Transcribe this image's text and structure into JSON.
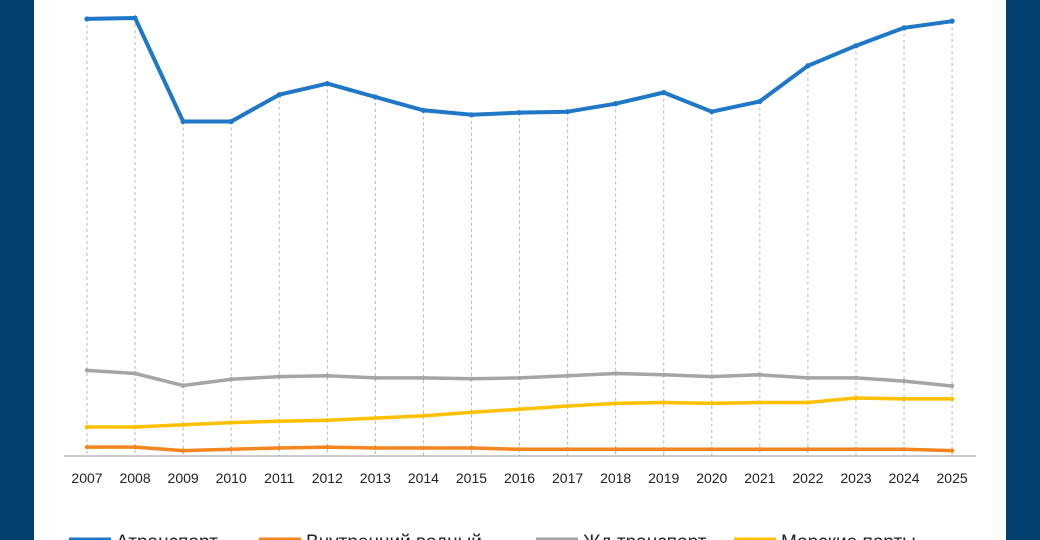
{
  "chart_data": {
    "type": "line",
    "title": "",
    "xlabel": "",
    "ylabel": "",
    "grid": "vertical dashed lines at each year",
    "legend": "bottom",
    "ylim": [
      0,
      100
    ],
    "categories": [
      "2007",
      "2008",
      "2009",
      "2010",
      "2011",
      "2012",
      "2013",
      "2014",
      "2015",
      "2016",
      "2017",
      "2018",
      "2019",
      "2020",
      "2021",
      "2022",
      "2023",
      "2024",
      "2025"
    ],
    "series": [
      {
        "name": "Атранспорт",
        "color": "#1f77c8",
        "values": [
          98.0,
          98.2,
          75.0,
          75.0,
          81.0,
          83.5,
          80.5,
          77.5,
          76.5,
          77.0,
          77.2,
          79.0,
          81.5,
          77.2,
          79.5,
          87.5,
          92.0,
          96.0,
          97.5
        ]
      },
      {
        "name": "Внутренний водный",
        "color": "#f5851f",
        "values": [
          2.0,
          2.0,
          1.2,
          1.5,
          1.8,
          2.0,
          1.8,
          1.8,
          1.8,
          1.5,
          1.5,
          1.5,
          1.5,
          1.5,
          1.5,
          1.5,
          1.5,
          1.5,
          1.2
        ]
      },
      {
        "name": "Жд транспорт",
        "color": "#a5a5a5",
        "values": [
          19.2,
          18.5,
          15.8,
          17.2,
          17.8,
          18.0,
          17.5,
          17.5,
          17.3,
          17.5,
          18.0,
          18.5,
          18.2,
          17.8,
          18.2,
          17.5,
          17.5,
          16.8,
          15.7
        ]
      },
      {
        "name": "Морские порты",
        "color": "#ffc000",
        "values": [
          6.5,
          6.5,
          7.0,
          7.5,
          7.8,
          8.0,
          8.5,
          9.0,
          9.8,
          10.5,
          11.2,
          11.8,
          12.0,
          11.8,
          12.0,
          12.0,
          13.0,
          12.8,
          12.8
        ]
      }
    ]
  }
}
